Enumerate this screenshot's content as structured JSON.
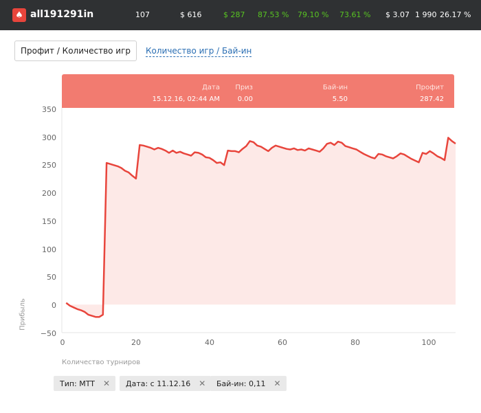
{
  "header": {
    "username": "all191291in",
    "logo_icon": "poker-spade-icon",
    "stats": [
      "107",
      "$ 616",
      "$ 287",
      "87.53 %",
      "79.10 %",
      "73.61 %",
      "$ 3.07",
      "1 990",
      "26.17 %"
    ]
  },
  "tabs": {
    "active": "Профит / Количество игр",
    "inactive": "Количество игр / Бай-ин"
  },
  "tooltip": {
    "date_label": "Дата",
    "date_value": "15.12.16, 02:44 AM",
    "prize_label": "Приз",
    "prize_value": "0.00",
    "buyin_label": "Бай-ин",
    "buyin_value": "5.50",
    "profit_label": "Профит",
    "profit_value": "287.42"
  },
  "filters": [
    {
      "label": "Тип: MTT"
    },
    {
      "label": "Дата: с 11.12.16"
    },
    {
      "label": "Бай-ин: 0,11"
    }
  ],
  "colors": {
    "line": "#e8453c",
    "area": "#fde9e7",
    "tooltip": "#f27b70",
    "header_bg": "#2f3133",
    "green": "#58c322"
  },
  "chart_data": {
    "type": "area",
    "xlabel": "Количество турниров",
    "ylabel": "Прибыль",
    "xlim": [
      0,
      107
    ],
    "ylim": [
      -50,
      350
    ],
    "xticks": [
      "0",
      "20",
      "40",
      "60",
      "80",
      "100"
    ],
    "yticks": [
      "350",
      "300",
      "250",
      "200",
      "150",
      "100",
      "50",
      "0",
      "−50"
    ],
    "x": [
      1,
      2,
      3,
      4,
      5,
      6,
      7,
      8,
      9,
      10,
      11,
      12,
      13,
      14,
      15,
      16,
      17,
      18,
      19,
      20,
      21,
      22,
      23,
      24,
      25,
      26,
      27,
      28,
      29,
      30,
      31,
      32,
      33,
      34,
      35,
      36,
      37,
      38,
      39,
      40,
      41,
      42,
      43,
      44,
      45,
      46,
      47,
      48,
      49,
      50,
      51,
      52,
      53,
      54,
      55,
      56,
      57,
      58,
      59,
      60,
      61,
      62,
      63,
      64,
      65,
      66,
      67,
      68,
      69,
      70,
      71,
      72,
      73,
      74,
      75,
      76,
      77,
      78,
      79,
      80,
      81,
      82,
      83,
      84,
      85,
      86,
      87,
      88,
      89,
      90,
      91,
      92,
      93,
      94,
      95,
      96,
      97,
      98,
      99,
      100,
      101,
      102,
      103,
      104,
      105,
      106,
      107
    ],
    "values": [
      3,
      -2,
      -5,
      -8,
      -10,
      -13,
      -18,
      -20,
      -22,
      -22,
      -18,
      253,
      251,
      249,
      247,
      244,
      239,
      236,
      230,
      225,
      285,
      284,
      282,
      280,
      277,
      280,
      278,
      275,
      271,
      275,
      271,
      273,
      270,
      268,
      266,
      272,
      271,
      268,
      263,
      262,
      258,
      253,
      254,
      249,
      275,
      274,
      274,
      272,
      278,
      283,
      292,
      290,
      284,
      282,
      278,
      274,
      280,
      284,
      282,
      280,
      278,
      277,
      279,
      276,
      277,
      275,
      279,
      277,
      275,
      273,
      279,
      287,
      289,
      285,
      291,
      289,
      283,
      281,
      279,
      277,
      273,
      269,
      266,
      263,
      261,
      269,
      268,
      265,
      263,
      261,
      265,
      270,
      268,
      264,
      260,
      257,
      254,
      271,
      269,
      274,
      270,
      265,
      262,
      258,
      298,
      292,
      287.42
    ]
  }
}
